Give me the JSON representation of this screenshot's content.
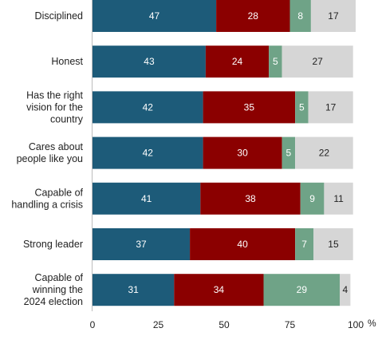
{
  "chart_data": {
    "type": "bar",
    "orientation": "horizontal",
    "stacked": true,
    "categories": [
      "Disciplined",
      "Honest",
      "Has the right vision for the country",
      "Cares about people like you",
      "Capable of handling a crisis",
      "Strong leader",
      "Capable of winning the 2024 election"
    ],
    "category_lines": [
      [
        "Disciplined"
      ],
      [
        "Honest"
      ],
      [
        "Has the right",
        "vision for the",
        "country"
      ],
      [
        "Cares about",
        "people like you"
      ],
      [
        "Capable of",
        "handling a crisis"
      ],
      [
        "Strong leader"
      ],
      [
        "Capable of",
        "winning the",
        "2024 election"
      ]
    ],
    "series": [
      {
        "values": [
          47,
          43,
          42,
          42,
          41,
          37,
          31
        ],
        "color": "#1d5b79",
        "label_color": "#ffffff"
      },
      {
        "values": [
          28,
          24,
          35,
          30,
          38,
          40,
          34
        ],
        "color": "#8b0000",
        "label_color": "#ffffff"
      },
      {
        "values": [
          8,
          5,
          5,
          5,
          9,
          7,
          29
        ],
        "color": "#6fa387",
        "label_color": "#ffffff"
      },
      {
        "values": [
          17,
          27,
          17,
          22,
          11,
          15,
          4
        ],
        "color": "#d6d6d6",
        "label_color": "#222222"
      }
    ],
    "xlim": [
      0,
      100
    ],
    "xticks": [
      "0",
      "25",
      "50",
      "75",
      "100"
    ],
    "x_unit": "%",
    "grid": false,
    "legend": "none"
  }
}
